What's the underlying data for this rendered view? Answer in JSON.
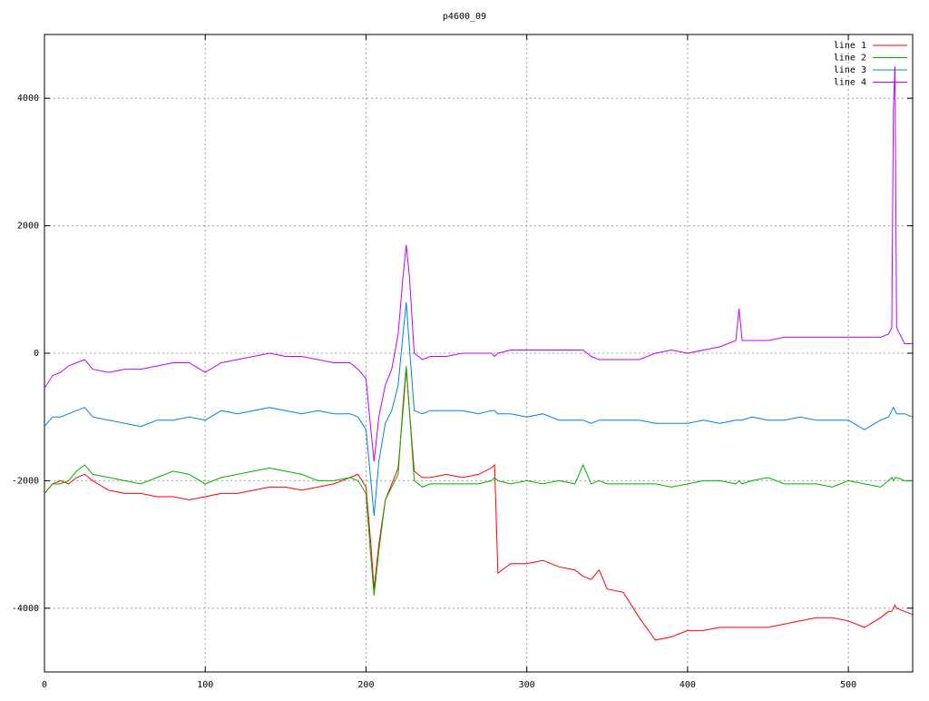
{
  "chart_data": {
    "type": "line",
    "title": "p4600_09",
    "x": [
      0,
      5,
      10,
      15,
      20,
      25,
      30,
      40,
      50,
      60,
      70,
      80,
      90,
      100,
      110,
      120,
      130,
      140,
      150,
      160,
      170,
      180,
      190,
      195,
      200,
      203,
      205,
      208,
      212,
      216,
      220,
      223,
      225,
      227,
      230,
      235,
      240,
      250,
      260,
      270,
      278,
      280,
      282,
      290,
      300,
      310,
      320,
      330,
      335,
      340,
      345,
      350,
      360,
      370,
      380,
      390,
      400,
      410,
      420,
      430,
      432,
      434,
      440,
      450,
      460,
      470,
      480,
      490,
      500,
      510,
      520,
      525,
      527,
      528,
      529,
      530,
      535,
      540
    ],
    "series": [
      {
        "name": "line 1",
        "color": "#ff0000",
        "values": [
          -2200,
          -2050,
          -2000,
          -2050,
          -1950,
          -1900,
          -2000,
          -2150,
          -2200,
          -2200,
          -2250,
          -2250,
          -2300,
          -2250,
          -2200,
          -2200,
          -2150,
          -2100,
          -2100,
          -2150,
          -2100,
          -2050,
          -1950,
          -1900,
          -2100,
          -3000,
          -3700,
          -3000,
          -2300,
          -2050,
          -1800,
          -900,
          -250,
          -900,
          -1850,
          -1950,
          -1950,
          -1900,
          -1950,
          -1900,
          -1800,
          -1750,
          -3450,
          -3300,
          -3300,
          -3250,
          -3350,
          -3400,
          -3500,
          -3550,
          -3400,
          -3700,
          -3750,
          -4150,
          -4500,
          -4450,
          -4350,
          -4350,
          -4300,
          -4300,
          -4300,
          -4300,
          -4300,
          -4300,
          -4250,
          -4200,
          -4150,
          -4150,
          -4200,
          -4300,
          -4150,
          -4050,
          -4050,
          -4000,
          -3950,
          -4000,
          -4050,
          -4100
        ]
      },
      {
        "name": "line 2",
        "color": "#00b000",
        "values": [
          -2200,
          -2050,
          -2050,
          -2000,
          -1850,
          -1750,
          -1900,
          -1950,
          -2000,
          -2050,
          -1950,
          -1850,
          -1900,
          -2050,
          -1950,
          -1900,
          -1850,
          -1800,
          -1850,
          -1900,
          -2000,
          -2000,
          -1950,
          -2000,
          -2200,
          -3200,
          -3800,
          -3100,
          -2300,
          -2100,
          -1900,
          -800,
          -200,
          -900,
          -2000,
          -2100,
          -2050,
          -2050,
          -2050,
          -2050,
          -2000,
          -1950,
          -2000,
          -2050,
          -2000,
          -2050,
          -2000,
          -2050,
          -1750,
          -2050,
          -2000,
          -2050,
          -2050,
          -2050,
          -2050,
          -2100,
          -2050,
          -2000,
          -2000,
          -2050,
          -2000,
          -2050,
          -2000,
          -1950,
          -2050,
          -2050,
          -2050,
          -2100,
          -2000,
          -2050,
          -2100,
          -2000,
          -1950,
          -2000,
          -1950,
          -1950,
          -2000,
          -2000
        ]
      },
      {
        "name": "line 3",
        "color": "#0080e0",
        "values": [
          -1150,
          -1000,
          -1000,
          -950,
          -900,
          -850,
          -1000,
          -1050,
          -1100,
          -1150,
          -1050,
          -1050,
          -1000,
          -1050,
          -900,
          -950,
          -900,
          -850,
          -900,
          -950,
          -900,
          -950,
          -950,
          -1000,
          -1200,
          -2000,
          -2550,
          -1700,
          -1100,
          -900,
          -500,
          300,
          800,
          100,
          -900,
          -950,
          -900,
          -900,
          -900,
          -950,
          -900,
          -900,
          -950,
          -950,
          -1000,
          -950,
          -1050,
          -1050,
          -1050,
          -1100,
          -1050,
          -1050,
          -1050,
          -1050,
          -1100,
          -1100,
          -1100,
          -1050,
          -1100,
          -1050,
          -1050,
          -1050,
          -1000,
          -1050,
          -1050,
          -1000,
          -1050,
          -1050,
          -1050,
          -1200,
          -1050,
          -1000,
          -900,
          -850,
          -900,
          -950,
          -950,
          -1000
        ]
      },
      {
        "name": "line 4",
        "color": "#c000ff",
        "values": [
          -550,
          -350,
          -300,
          -200,
          -150,
          -100,
          -250,
          -300,
          -250,
          -250,
          -200,
          -150,
          -150,
          -300,
          -150,
          -100,
          -50,
          0,
          -50,
          -50,
          -100,
          -150,
          -150,
          -250,
          -400,
          -1200,
          -1700,
          -1000,
          -500,
          -250,
          300,
          1200,
          1700,
          1200,
          0,
          -100,
          -50,
          -50,
          0,
          0,
          0,
          -50,
          0,
          50,
          50,
          50,
          50,
          50,
          50,
          -50,
          -100,
          -100,
          -100,
          -100,
          0,
          50,
          0,
          50,
          100,
          200,
          700,
          200,
          200,
          200,
          250,
          250,
          250,
          250,
          250,
          250,
          250,
          300,
          400,
          3800,
          4500,
          400,
          150,
          150
        ]
      }
    ],
    "xlim": [
      0,
      540
    ],
    "xticks": [
      0,
      100,
      200,
      300,
      400,
      500
    ],
    "ylim": [
      -5000,
      5000
    ],
    "yticks": [
      -4000,
      -2000,
      0,
      2000,
      4000
    ],
    "grid": true,
    "legend": "top-right"
  }
}
